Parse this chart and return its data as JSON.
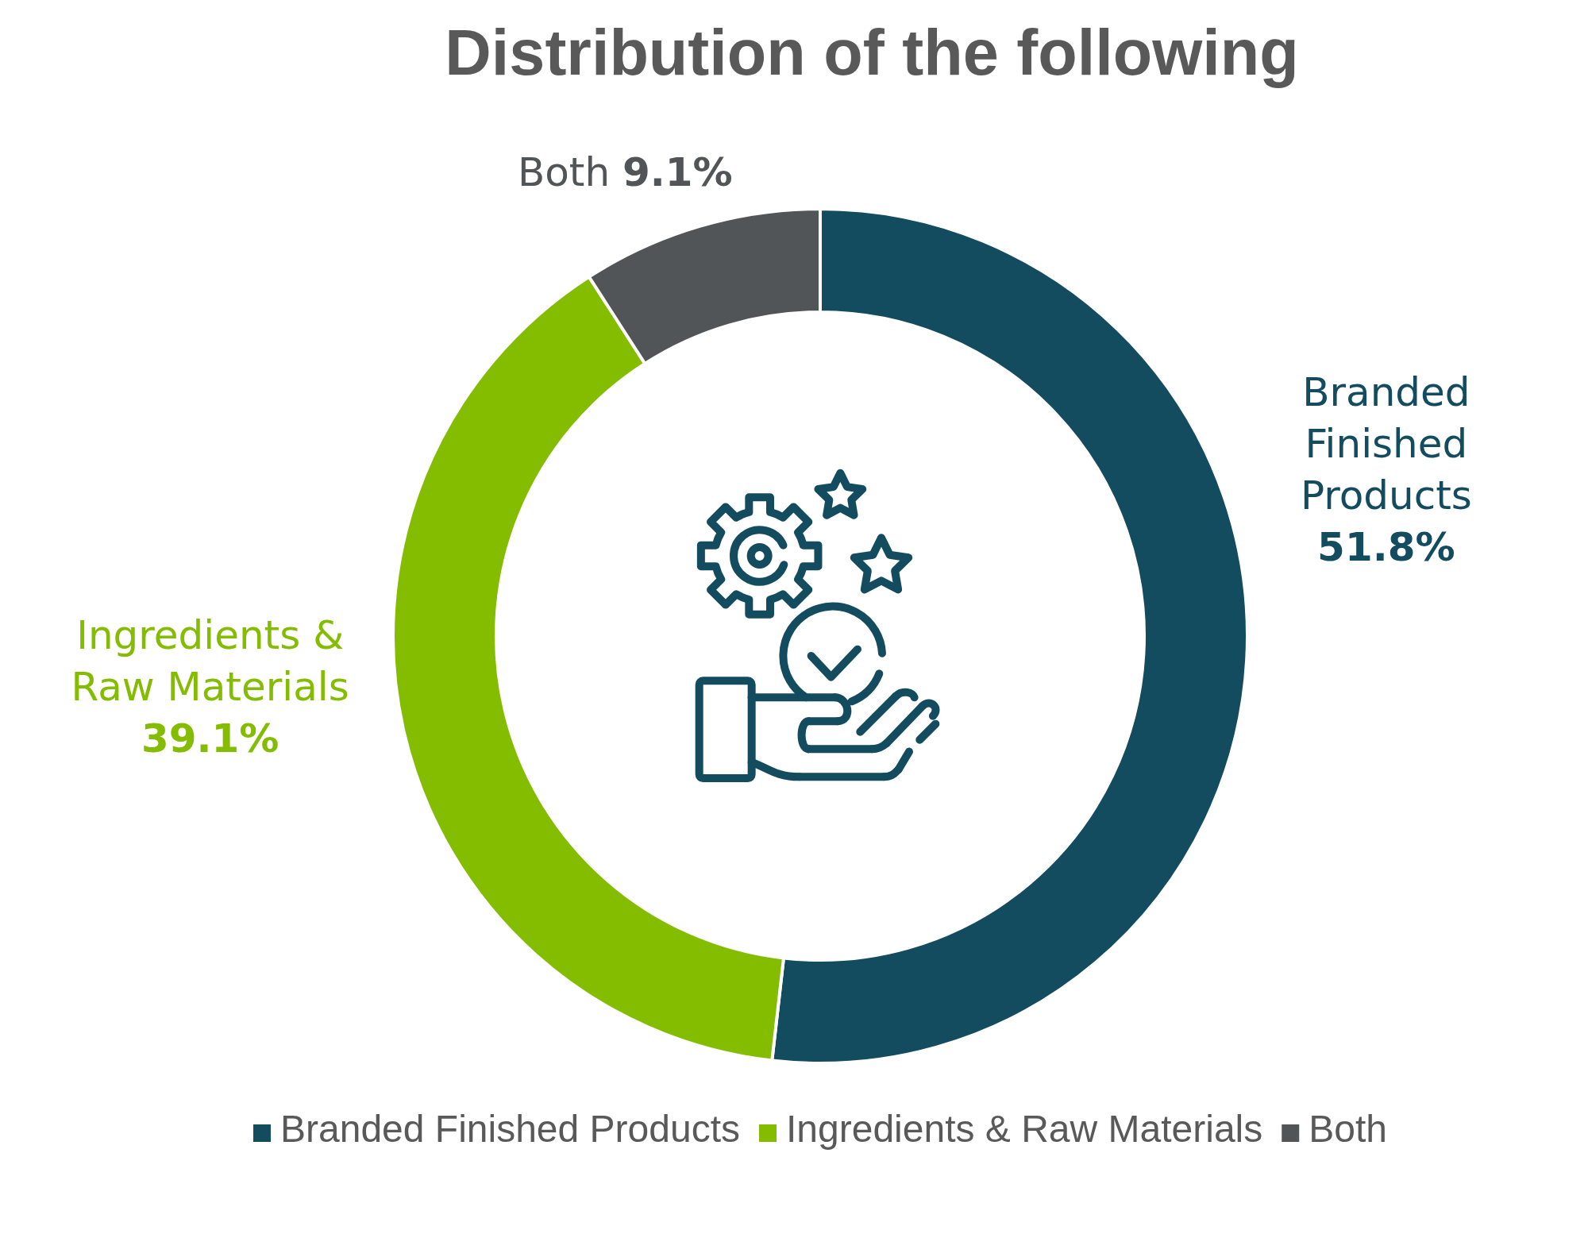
{
  "chart_data": {
    "type": "donut",
    "title": "Distribution of the following",
    "categories": [
      "Branded Finished Products",
      "Ingredients & Raw Materials",
      "Both"
    ],
    "values": [
      51.8,
      39.1,
      9.1
    ],
    "colors": [
      "#134b5f",
      "#84bc00",
      "#515558"
    ],
    "value_labels": [
      "51.8%",
      "39.1%",
      "9.1%"
    ],
    "legend": "bottom"
  }
}
